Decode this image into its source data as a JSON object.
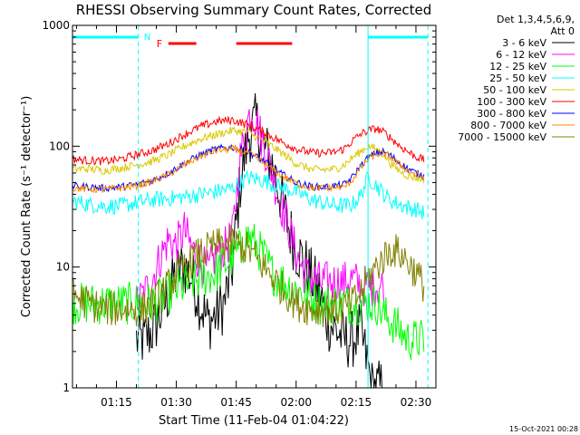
{
  "chart_data": {
    "type": "line",
    "title": "RHESSI Observing Summary Count Rates, Corrected",
    "xlabel": "Start Time (11-Feb-04 01:04:22)",
    "ylabel": "Corrected Count Rate (s⁻¹ detector⁻¹)",
    "yscale": "log",
    "ylim": [
      1,
      1000
    ],
    "xlim_minutes": [
      0,
      91
    ],
    "x_ticks": [
      "01:15",
      "01:30",
      "01:45",
      "02:00",
      "02:15",
      "02:30"
    ],
    "y_ticks": [
      "1",
      "10",
      "100",
      "1000"
    ],
    "legend": {
      "placement": "right",
      "header_line1": "Det 1,3,4,5,6,9,",
      "header_line2": "Att 0",
      "entries": [
        {
          "label": "3 - 6 keV",
          "color": "#000000"
        },
        {
          "label": "6 - 12 keV",
          "color": "#ff00ff"
        },
        {
          "label": "12 - 25 keV",
          "color": "#00ff00"
        },
        {
          "label": "25 - 50 keV",
          "color": "#00ffff"
        },
        {
          "label": "50 - 100 keV",
          "color": "#dcc800"
        },
        {
          "label": "100 - 300 keV",
          "color": "#ff0000"
        },
        {
          "label": "300 - 800 keV",
          "color": "#0000ff"
        },
        {
          "label": "800 - 7000 keV",
          "color": "#ff8c00"
        },
        {
          "label": "7000 - 15000 keV",
          "color": "#808000"
        }
      ]
    },
    "annotations": {
      "n_label": "N",
      "f_label": "F",
      "night_bars": [
        [
          0,
          16.5
        ],
        [
          74,
          89
        ]
      ],
      "night_bar_color": "#00ffff",
      "flare_bars": [
        [
          24,
          31
        ],
        [
          41,
          55
        ]
      ],
      "flare_bar_color": "#ff0000",
      "vertical_dashed_x": [
        16.5,
        89
      ],
      "vertical_solid_x": [
        74
      ]
    },
    "series": [
      {
        "name": "3 - 6 keV",
        "color": "#000000",
        "noise": 0.25,
        "x": [
          16,
          18,
          20,
          22,
          24,
          26,
          28,
          30,
          32,
          34,
          36,
          38,
          40,
          42,
          44,
          45,
          46,
          48,
          50,
          52,
          54,
          56,
          58,
          60,
          62,
          64,
          66,
          68,
          70,
          72,
          74,
          75,
          76,
          78
        ],
        "y": [
          2.5,
          2.5,
          3,
          4,
          6,
          9,
          10,
          8,
          5,
          3.5,
          4,
          5,
          10,
          50,
          120,
          140,
          160,
          100,
          70,
          40,
          22,
          14,
          11,
          8,
          6,
          3.5,
          3,
          2.5,
          2.5,
          3,
          1.5,
          1,
          1,
          1
        ]
      },
      {
        "name": "6 - 12 keV",
        "color": "#ff00ff",
        "noise": 0.18,
        "x": [
          16,
          18,
          20,
          22,
          24,
          26,
          28,
          30,
          32,
          34,
          36,
          38,
          40,
          42,
          44,
          45,
          46,
          48,
          50,
          52,
          54,
          56,
          58,
          60,
          62,
          64,
          66,
          68,
          70,
          72,
          74,
          76,
          78
        ],
        "y": [
          5,
          6,
          8,
          12,
          17,
          15,
          20,
          14,
          11,
          9,
          13,
          14,
          18,
          80,
          170,
          200,
          160,
          100,
          60,
          35,
          22,
          13,
          9,
          8,
          7.5,
          7.5,
          7.5,
          7.5,
          8,
          7,
          7,
          7,
          7
        ]
      },
      {
        "name": "12 - 25 keV",
        "color": "#00ff00",
        "noise": 0.18,
        "x": [
          0,
          4,
          8,
          12,
          16,
          20,
          24,
          28,
          32,
          36,
          40,
          42,
          44,
          46,
          48,
          50,
          54,
          58,
          62,
          66,
          70,
          74,
          76,
          78,
          80,
          82,
          84,
          86,
          88
        ],
        "y": [
          5,
          5,
          5,
          5,
          5,
          5,
          6,
          7,
          8,
          9,
          12,
          14,
          18,
          15,
          12,
          9,
          7,
          6,
          5,
          5,
          5,
          5,
          5,
          4,
          3.5,
          3,
          2.5,
          2.5,
          2.5
        ]
      },
      {
        "name": "25 - 50 keV",
        "color": "#00ffff",
        "noise": 0.07,
        "x": [
          0,
          4,
          8,
          12,
          16,
          20,
          24,
          28,
          32,
          36,
          40,
          44,
          48,
          52,
          56,
          60,
          64,
          68,
          70,
          72,
          74,
          76,
          78,
          80,
          82,
          84,
          86,
          88
        ],
        "y": [
          35,
          33,
          32,
          32,
          34,
          36,
          37,
          38,
          40,
          42,
          45,
          55,
          52,
          46,
          42,
          36,
          33,
          32,
          33,
          38,
          55,
          48,
          40,
          35,
          33,
          31,
          30,
          28
        ]
      },
      {
        "name": "50 - 100 keV",
        "color": "#dcc800",
        "noise": 0.035,
        "x": [
          0,
          4,
          8,
          12,
          16,
          20,
          24,
          28,
          32,
          36,
          40,
          44,
          48,
          52,
          56,
          60,
          64,
          66,
          68,
          70,
          72,
          74,
          76,
          78,
          80,
          82,
          84,
          86,
          88
        ],
        "y": [
          65,
          65,
          63,
          66,
          70,
          75,
          85,
          100,
          115,
          125,
          135,
          130,
          110,
          90,
          72,
          64,
          64,
          65,
          70,
          80,
          90,
          100,
          95,
          85,
          70,
          62,
          57,
          55,
          53
        ]
      },
      {
        "name": "100 - 300 keV",
        "color": "#ff0000",
        "noise": 0.035,
        "x": [
          0,
          4,
          8,
          12,
          16,
          20,
          24,
          28,
          32,
          36,
          40,
          44,
          48,
          52,
          56,
          60,
          64,
          66,
          68,
          70,
          72,
          74,
          76,
          78,
          80,
          82,
          84,
          86,
          88
        ],
        "y": [
          78,
          76,
          75,
          78,
          85,
          92,
          105,
          125,
          145,
          160,
          165,
          150,
          130,
          110,
          95,
          88,
          88,
          90,
          95,
          110,
          125,
          135,
          140,
          130,
          115,
          100,
          90,
          82,
          77
        ]
      },
      {
        "name": "300 - 800 keV",
        "color": "#0000ff",
        "noise": 0.03,
        "x": [
          0,
          4,
          8,
          12,
          16,
          20,
          24,
          28,
          32,
          36,
          40,
          44,
          48,
          52,
          56,
          60,
          64,
          68,
          70,
          72,
          74,
          76,
          78,
          80,
          82,
          84,
          86,
          88
        ],
        "y": [
          47,
          46,
          45,
          46,
          48,
          52,
          60,
          72,
          85,
          95,
          98,
          90,
          75,
          60,
          50,
          46,
          46,
          48,
          55,
          68,
          80,
          88,
          90,
          82,
          72,
          65,
          60,
          57
        ]
      },
      {
        "name": "800 - 7000 keV",
        "color": "#ff8c00",
        "noise": 0.03,
        "x": [
          0,
          4,
          8,
          12,
          16,
          20,
          24,
          28,
          32,
          36,
          40,
          44,
          48,
          52,
          56,
          60,
          64,
          68,
          70,
          72,
          74,
          76,
          78,
          80,
          82,
          84,
          86,
          88
        ],
        "y": [
          45,
          44,
          44,
          45,
          47,
          51,
          58,
          70,
          82,
          92,
          95,
          88,
          72,
          58,
          49,
          45,
          45,
          46,
          52,
          65,
          78,
          85,
          87,
          80,
          70,
          63,
          58,
          55
        ]
      },
      {
        "name": "7000 - 15000 keV",
        "color": "#808000",
        "noise": 0.15,
        "x": [
          0,
          4,
          8,
          12,
          16,
          18,
          20,
          24,
          28,
          32,
          36,
          40,
          44,
          48,
          52,
          56,
          60,
          64,
          68,
          70,
          72,
          74,
          76,
          78,
          80,
          82,
          84,
          86,
          88
        ],
        "y": [
          6,
          5,
          4.5,
          4.5,
          4.5,
          4.5,
          5,
          7,
          10,
          13,
          15,
          16,
          14,
          10,
          7,
          5,
          4.5,
          4.5,
          4.5,
          5,
          6,
          8,
          10,
          12,
          14,
          13,
          11,
          9,
          7
        ]
      }
    ]
  },
  "timestamp": "15-Oct-2021 00:28"
}
